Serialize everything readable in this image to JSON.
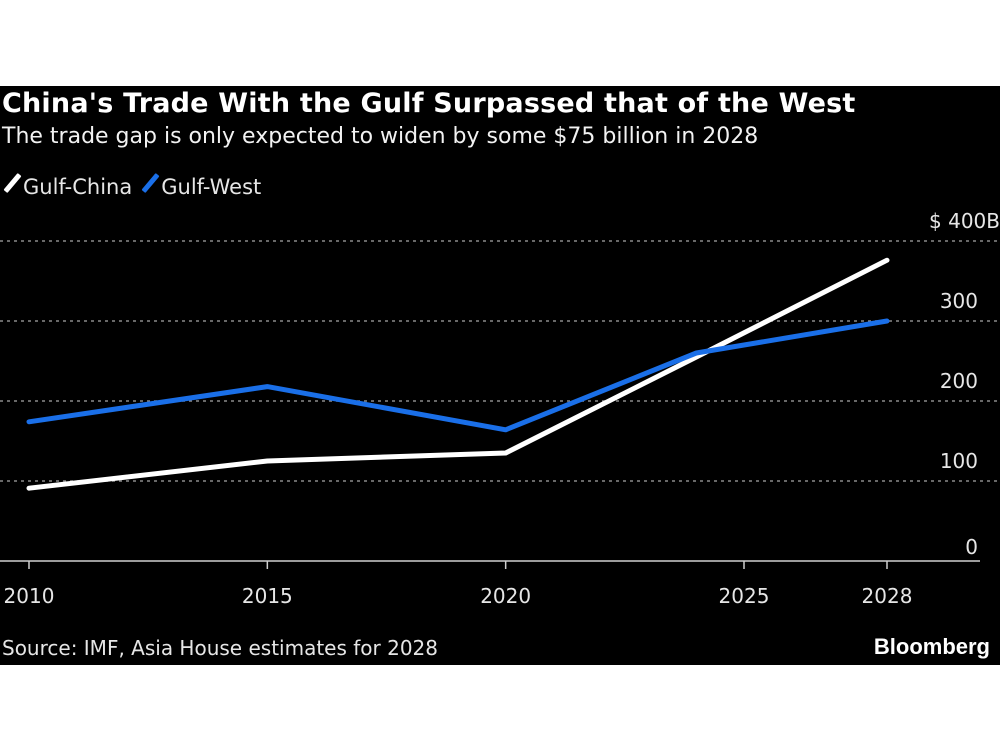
{
  "chart_data": {
    "type": "line",
    "title": "China's Trade With the Gulf Surpassed that of the West",
    "subtitle": "The trade gap is only expected to widen by some $75 billion in 2028",
    "source": "Source: IMF, Asia House estimates for 2028",
    "brand": "Bloomberg",
    "xlabel": "",
    "ylabel": "",
    "x_ticks": [
      "2010",
      "2015",
      "2020",
      "2025",
      "2028"
    ],
    "y_ticks": [
      "0",
      "100",
      "200",
      "300",
      "$ 400B"
    ],
    "xlim": [
      2010,
      2028
    ],
    "ylim": [
      0,
      400
    ],
    "grid": true,
    "legend_position": "top-left",
    "series": [
      {
        "name": "Gulf-China",
        "color": "#ffffff",
        "x": [
          2010,
          2015,
          2020,
          2024,
          2028
        ],
        "y": [
          91,
          125,
          135,
          255,
          376
        ]
      },
      {
        "name": "Gulf-West",
        "color": "#1a6fe8",
        "x": [
          2010,
          2015,
          2020,
          2024,
          2028
        ],
        "y": [
          174,
          218,
          164,
          260,
          300
        ]
      }
    ]
  }
}
